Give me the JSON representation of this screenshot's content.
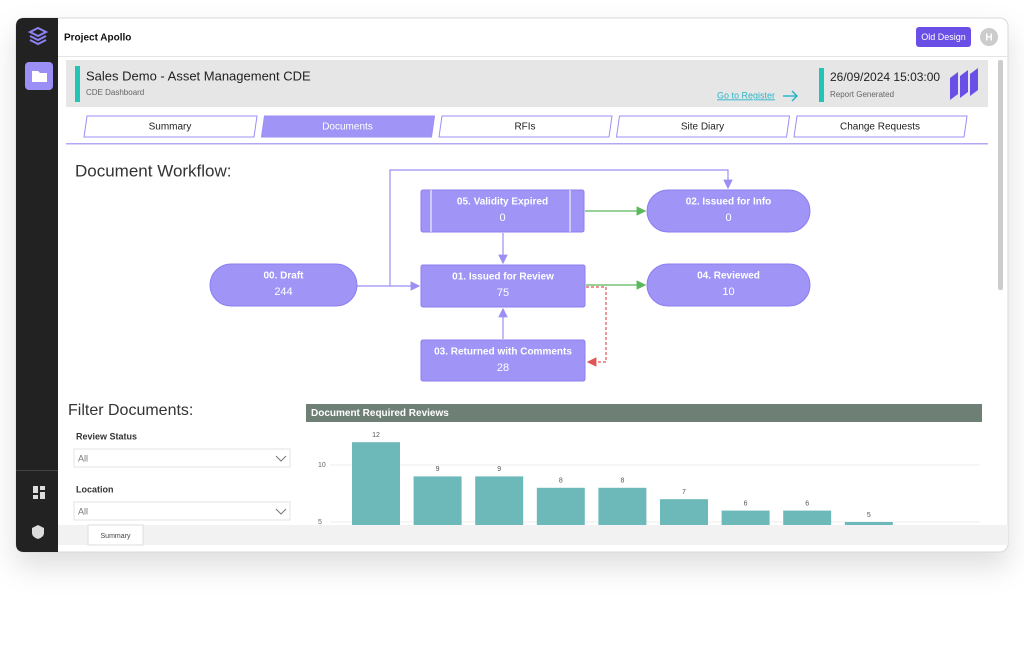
{
  "app": {
    "name": "Project Apollo",
    "button": "Old Design",
    "avatar": "H"
  },
  "header": {
    "title": "Sales Demo - Asset Management CDE",
    "subtitle": "CDE Dashboard",
    "link": "Go to Register",
    "timestamp": "26/09/2024 15:03:00",
    "timestamp_label": "Report Generated"
  },
  "tabs": [
    "Summary",
    "Documents",
    "RFIs",
    "Site Diary",
    "Change Requests"
  ],
  "workflow": {
    "title": "Document Workflow:",
    "nodes": [
      {
        "label": "00. Draft",
        "count": 244
      },
      {
        "label": "05. Validity Expired",
        "count": 0
      },
      {
        "label": "02. Issued for Info",
        "count": 0
      },
      {
        "label": "01. Issued for Review",
        "count": 75
      },
      {
        "label": "04. Reviewed",
        "count": 10
      },
      {
        "label": "03. Returned with Comments",
        "count": 28
      }
    ]
  },
  "filters": {
    "title": "Filter Documents:",
    "fields": [
      {
        "label": "Review Status",
        "value": "All"
      },
      {
        "label": "Location",
        "value": "All"
      }
    ]
  },
  "page_tabs": [
    "Summary"
  ],
  "chart_data": {
    "type": "bar",
    "title": "Document Required Reviews",
    "categories": [
      null,
      null,
      null,
      null,
      null,
      null,
      null,
      null,
      null
    ],
    "values": [
      12,
      9,
      9,
      8,
      8,
      7,
      6,
      6,
      5
    ],
    "color": "#6db9ba",
    "ylim": [
      4.7,
      13
    ],
    "yticks": [
      5,
      10
    ],
    "grid": true
  }
}
